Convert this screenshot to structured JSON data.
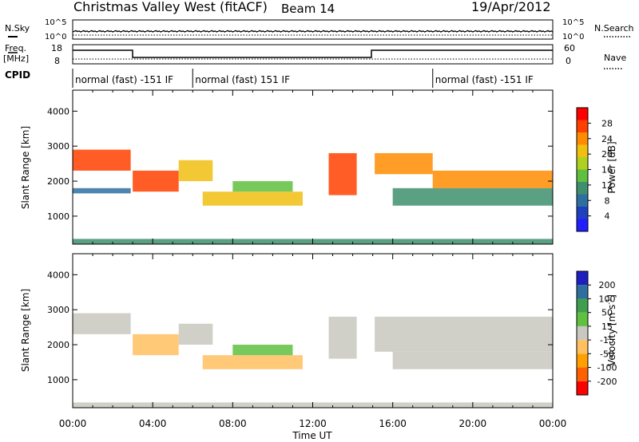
{
  "header": {
    "station": "Christmas Valley West (fitACF)",
    "beam": "Beam 14",
    "date": "19/Apr/2012"
  },
  "labels": {
    "nsky": "N.Sky",
    "nsearch": "N.Search",
    "freq": "Freq.",
    "mhz": "[MHz]",
    "nave": "Nave",
    "cpid": "CPID",
    "slant_range": "Slant Range [km]",
    "power": "Power [dB]",
    "velocity": "Velocity [m s",
    "velocity_exp": "-1",
    "velocity_close": "]",
    "time_ut": "Time UT"
  },
  "noise_axis": {
    "left_top": "10^5",
    "left_bottom": "10^0",
    "right_top": "10^5",
    "right_bottom": "10^0"
  },
  "freq_axis": {
    "left_top": "18",
    "left_bottom": "8",
    "right_top": "60",
    "right_bottom": "0"
  },
  "cpid": [
    {
      "label": "normal (fast) -151 IF",
      "start": 0,
      "end": 6
    },
    {
      "label": "normal (fast) 151 IF",
      "start": 6,
      "end": 18
    },
    {
      "label": "normal (fast) -151 IF",
      "start": 18,
      "end": 24
    }
  ],
  "chart_data": [
    {
      "type": "heatmap",
      "quantity": "Power",
      "x_range_hours": [
        0,
        24
      ],
      "y_range_km": [
        200,
        4600
      ],
      "xticks": [
        "00:00",
        "04:00",
        "08:00",
        "12:00",
        "16:00",
        "20:00",
        "00:00"
      ],
      "yticks": [
        1000,
        2000,
        3000,
        4000
      ],
      "colorbar": {
        "label": "Power [dB]",
        "ticks": [
          "4",
          "8",
          "12",
          "16",
          "20",
          "24",
          "28"
        ],
        "range": [
          0,
          30
        ]
      },
      "colors": [
        "#1f1fff",
        "#1f3fbf",
        "#2f6f9f",
        "#3f8f6f",
        "#5fbf3f",
        "#afd020",
        "#f0c010",
        "#ff8c00",
        "#ff4000",
        "#ff0000"
      ],
      "regions": [
        {
          "x": [
            0,
            2.9
          ],
          "y": [
            2300,
            2900
          ],
          "v": 24
        },
        {
          "x": [
            0,
            2.9
          ],
          "y": [
            1650,
            1800
          ],
          "v": 6
        },
        {
          "x": [
            3,
            5.3
          ],
          "y": [
            1700,
            2300
          ],
          "v": 26
        },
        {
          "x": [
            5.3,
            7.0
          ],
          "y": [
            2000,
            2600
          ],
          "v": 18
        },
        {
          "x": [
            6.5,
            11.5
          ],
          "y": [
            1300,
            1700
          ],
          "v": 18
        },
        {
          "x": [
            8.0,
            11.0
          ],
          "y": [
            1700,
            2000
          ],
          "v": 12
        },
        {
          "x": [
            12.8,
            14.2
          ],
          "y": [
            1600,
            2800
          ],
          "v": 24
        },
        {
          "x": [
            15.1,
            18
          ],
          "y": [
            2200,
            2800
          ],
          "v": 22
        },
        {
          "x": [
            18,
            24
          ],
          "y": [
            1800,
            2300
          ],
          "v": 22
        },
        {
          "x": [
            16,
            24
          ],
          "y": [
            1300,
            1800
          ],
          "v": 10
        },
        {
          "x": [
            0,
            24
          ],
          "y": [
            200,
            350
          ],
          "v": 10
        }
      ]
    },
    {
      "type": "heatmap",
      "quantity": "Velocity",
      "x_range_hours": [
        0,
        24
      ],
      "y_range_km": [
        200,
        4600
      ],
      "xticks": [
        "00:00",
        "04:00",
        "08:00",
        "12:00",
        "16:00",
        "20:00",
        "00:00"
      ],
      "yticks": [
        1000,
        2000,
        3000,
        4000
      ],
      "xlabel": "Time UT",
      "colorbar": {
        "label": "Velocity [m s-1]",
        "ticks": [
          "-200",
          "-100",
          "-50",
          "-15",
          "15",
          "50",
          "100",
          "200"
        ],
        "range": [
          -250,
          250
        ]
      },
      "colors": [
        "#ff0000",
        "#ff6000",
        "#ffa000",
        "#ffc060",
        "#c8c8c0",
        "#60c040",
        "#3f9f4f",
        "#2f6f9f",
        "#1f1fbf"
      ],
      "regions": [
        {
          "x": [
            0,
            2.9
          ],
          "y": [
            2300,
            2900
          ],
          "v": 0
        },
        {
          "x": [
            3,
            5.3
          ],
          "y": [
            1700,
            2300
          ],
          "v": -30
        },
        {
          "x": [
            5.3,
            7.0
          ],
          "y": [
            2000,
            2600
          ],
          "v": 0
        },
        {
          "x": [
            6.5,
            11.5
          ],
          "y": [
            1300,
            1700
          ],
          "v": -40
        },
        {
          "x": [
            8.0,
            11.0
          ],
          "y": [
            1700,
            2000
          ],
          "v": 30
        },
        {
          "x": [
            12.8,
            14.2
          ],
          "y": [
            1600,
            2800
          ],
          "v": 0
        },
        {
          "x": [
            15.1,
            24
          ],
          "y": [
            1800,
            2800
          ],
          "v": 0
        },
        {
          "x": [
            16,
            24
          ],
          "y": [
            1300,
            1800
          ],
          "v": 0
        },
        {
          "x": [
            0,
            24
          ],
          "y": [
            200,
            350
          ],
          "v": -20
        }
      ]
    }
  ]
}
